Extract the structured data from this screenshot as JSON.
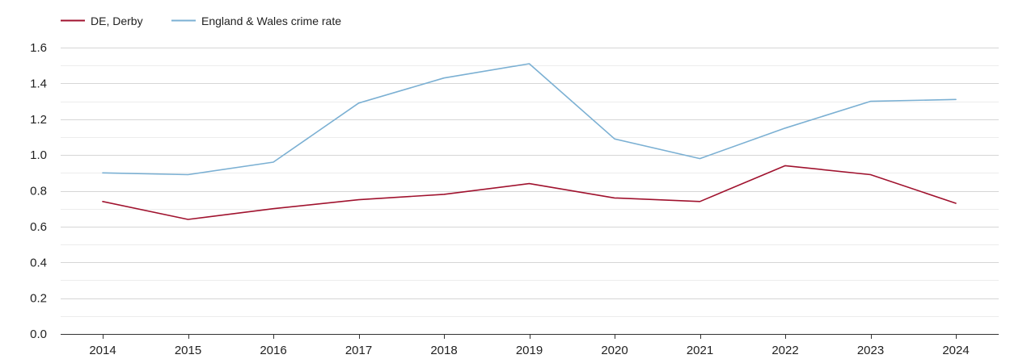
{
  "chart_data": {
    "type": "line",
    "title": "",
    "xlabel": "",
    "ylabel": "",
    "categories": [
      "2014",
      "2015",
      "2016",
      "2017",
      "2018",
      "2019",
      "2020",
      "2021",
      "2022",
      "2023",
      "2024"
    ],
    "ylim": [
      0,
      1.6
    ],
    "yticks": [
      "0.0",
      "0.2",
      "0.4",
      "0.6",
      "0.8",
      "1.0",
      "1.2",
      "1.4",
      "1.6"
    ],
    "grid": true,
    "legend_position": "top-left",
    "series": [
      {
        "name": "DE, Derby",
        "color": "#a0122e",
        "values": [
          0.74,
          0.64,
          0.7,
          0.75,
          0.78,
          0.84,
          0.76,
          0.74,
          0.94,
          0.89,
          0.73
        ]
      },
      {
        "name": "England & Wales crime rate",
        "color": "#7bb0d3",
        "values": [
          0.9,
          0.89,
          0.96,
          1.29,
          1.43,
          1.51,
          1.09,
          0.98,
          1.15,
          1.3,
          1.31
        ]
      }
    ]
  }
}
